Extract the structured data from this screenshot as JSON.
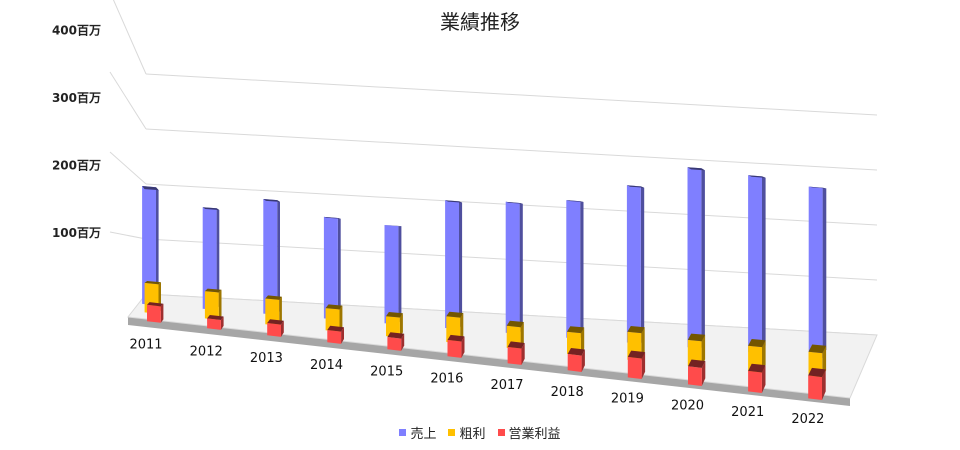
{
  "chart_data": {
    "type": "bar",
    "title": "業績推移",
    "categories": [
      "2011",
      "2012",
      "2013",
      "2014",
      "2015",
      "2016",
      "2017",
      "2018",
      "2019",
      "2020",
      "2021",
      "2022"
    ],
    "series": [
      {
        "name": "売上",
        "color": "#7F7FFF",
        "values": [
          180,
          155,
          175,
          155,
          150,
          195,
          200,
          210,
          240,
          275,
          270,
          260
        ]
      },
      {
        "name": "粗利",
        "color": "#FFC000",
        "values": [
          40,
          37,
          35,
          30,
          27,
          35,
          30,
          30,
          38,
          35,
          35,
          35
        ]
      },
      {
        "name": "営業利益",
        "color": "#FF4B4B",
        "values": [
          20,
          12,
          15,
          15,
          15,
          20,
          20,
          20,
          25,
          22,
          25,
          28
        ]
      }
    ],
    "yticks": [
      "100百万",
      "200百万",
      "300百万",
      "400百万"
    ],
    "ylim": [
      0,
      400
    ],
    "grid": true,
    "legend": "bottom"
  }
}
